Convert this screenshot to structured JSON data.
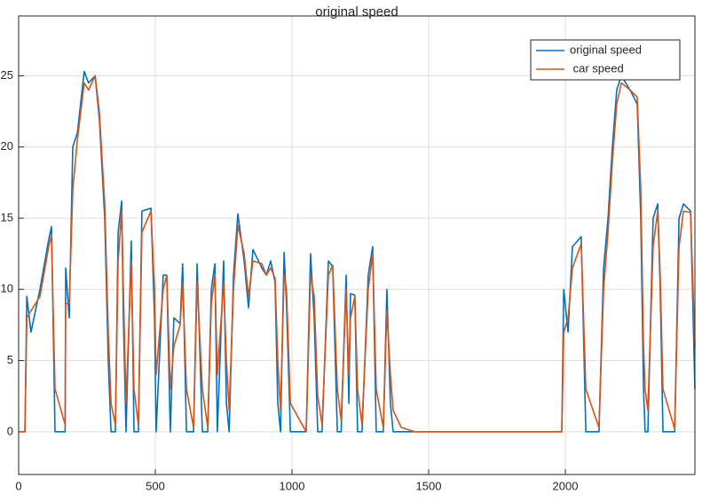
{
  "chart_data": {
    "type": "line",
    "title": "original speed",
    "x": [
      0,
      23,
      30,
      45,
      78,
      110,
      120,
      133,
      170,
      172,
      185,
      198,
      215,
      240,
      256,
      280,
      295,
      315,
      328,
      338,
      354,
      364,
      377,
      383,
      393,
      412,
      422,
      438,
      451,
      484,
      497,
      503,
      529,
      542,
      555,
      568,
      591,
      600,
      614,
      640,
      653,
      672,
      692,
      705,
      718,
      727,
      750,
      760,
      770,
      786,
      802,
      825,
      841,
      857,
      890,
      906,
      922,
      938,
      948,
      958,
      971,
      980,
      994,
      1052,
      1068,
      1081,
      1094,
      1110,
      1133,
      1149,
      1166,
      1180,
      1198,
      1208,
      1214,
      1230,
      1240,
      1256,
      1279,
      1295,
      1308,
      1334,
      1347,
      1360,
      1370,
      1400,
      1450,
      1987,
      1994,
      2010,
      2026,
      2058,
      2075,
      2123,
      2140,
      2156,
      2172,
      2188,
      2205,
      2237,
      2263,
      2276,
      2286,
      2292,
      2302,
      2321,
      2338,
      2347,
      2357,
      2400,
      2416,
      2432,
      2458,
      2474
    ],
    "series": [
      {
        "name": "original speed",
        "color": "#0072bd",
        "values": [
          0,
          0,
          9.5,
          7,
          10,
          13.5,
          14.4,
          0,
          0,
          11.5,
          8,
          20,
          21,
          25.3,
          24.5,
          25,
          22,
          15,
          5,
          0,
          0,
          14,
          16.2,
          8,
          0,
          13.4,
          0,
          0,
          15.5,
          15.7,
          8,
          0,
          11,
          11,
          0,
          8,
          7.6,
          11.8,
          0,
          0,
          11.8,
          0,
          0,
          10,
          11.8,
          0,
          12,
          2,
          0,
          11,
          15.3,
          12,
          8.7,
          12.8,
          11.5,
          11,
          12,
          10.5,
          2,
          0,
          12.6,
          9,
          0,
          0,
          12.5,
          8,
          0,
          0,
          12,
          11.6,
          0,
          0,
          11,
          2,
          9.7,
          9.6,
          0,
          0,
          11,
          13,
          0,
          0,
          10,
          2,
          0,
          0,
          0,
          0,
          10,
          7,
          13,
          13.7,
          0,
          0,
          11.5,
          15,
          20,
          24,
          25,
          24,
          23,
          15,
          3,
          0,
          0,
          15,
          16,
          10,
          0,
          0,
          15,
          16,
          15.5,
          3
        ]
      },
      {
        "name": " car speed",
        "color": "#d95319",
        "values": [
          0,
          0,
          8,
          8.5,
          9.5,
          13,
          13.8,
          3,
          0.5,
          9,
          9,
          17,
          20.5,
          24.5,
          24,
          25,
          22.5,
          16,
          7,
          2,
          0.5,
          12,
          15.5,
          10,
          2,
          12,
          3,
          0.5,
          14,
          15.5,
          10,
          4,
          10,
          11,
          3,
          6,
          7.5,
          10.5,
          3,
          0.3,
          10.5,
          3,
          0.3,
          9,
          11,
          4,
          10.5,
          5,
          1.5,
          10,
          14.5,
          12.5,
          9.5,
          12,
          11.8,
          11,
          11.5,
          10.8,
          5,
          1.5,
          11,
          10,
          2,
          0,
          11,
          9.5,
          2.5,
          0.5,
          11,
          11.7,
          3,
          0.8,
          10,
          4,
          8,
          9.5,
          3,
          0.5,
          10,
          12.5,
          3,
          0.3,
          8.5,
          4,
          1.5,
          0.3,
          0,
          0,
          7,
          8,
          11.5,
          13.2,
          3,
          0.3,
          10,
          14,
          19,
          23,
          24.5,
          24,
          23.5,
          17,
          6,
          3,
          1.5,
          13,
          15.5,
          11,
          3,
          0.2,
          13,
          15.5,
          15.4,
          6
        ]
      }
    ],
    "xlim": [
      0,
      2474
    ],
    "ylim": [
      -3,
      29.2
    ],
    "xticks": [
      0,
      500,
      1000,
      1500,
      2000
    ],
    "yticks": [
      0,
      5,
      10,
      15,
      20,
      25
    ],
    "grid": true,
    "legend": "top-right"
  }
}
